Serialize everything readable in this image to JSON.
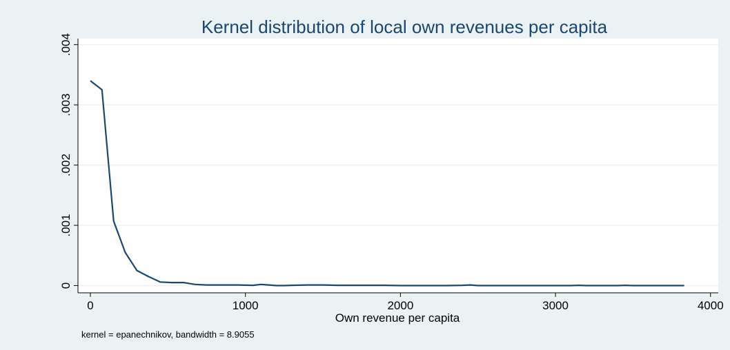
{
  "chart_data": {
    "type": "line",
    "title": "Kernel distribution of local own revenues per capita",
    "xlabel": "Own revenue per capita",
    "ylabel": "",
    "note": "kernel = epanechnikov, bandwidth = 8.9055",
    "xlim": [
      -80,
      4050
    ],
    "ylim": [
      -0.00012,
      0.0041
    ],
    "xticks": [
      0,
      1000,
      2000,
      3000,
      4000
    ],
    "xtick_labels": [
      "0",
      "1000",
      "2000",
      "3000",
      "4000"
    ],
    "yticks": [
      0,
      0.001,
      0.002,
      0.003,
      0.004
    ],
    "ytick_labels": [
      "0",
      ".001",
      ".002",
      ".003",
      ".004"
    ],
    "grid": true,
    "colors": {
      "line": "#1a476f",
      "plot_bg": "#ffffff",
      "outer_bg": "#eaf2f3",
      "grid": "#eaf2f3",
      "title": "#1a476f"
    },
    "series": [
      {
        "x": [
          0,
          75,
          150,
          225,
          300,
          375,
          450,
          525,
          600,
          675,
          750,
          850,
          950,
          1050,
          1100,
          1150,
          1200,
          1250,
          1300,
          1400,
          1500,
          1600,
          1700,
          1800,
          1900,
          2000,
          2100,
          2200,
          2300,
          2400,
          2450,
          2500,
          2600,
          2700,
          2800,
          2900,
          3000,
          3100,
          3150,
          3200,
          3300,
          3400,
          3450,
          3500,
          3600,
          3700,
          3750,
          3830
        ],
        "y": [
          0.0034,
          0.00325,
          0.00107,
          0.00055,
          0.00025,
          0.00015,
          6e-05,
          5e-05,
          5e-05,
          2e-05,
          1e-05,
          1e-05,
          1e-05,
          5e-06,
          2e-05,
          1e-05,
          0.0,
          0.0,
          5e-06,
          1e-05,
          1e-05,
          5e-06,
          5e-06,
          5e-06,
          5e-06,
          0.0,
          0.0,
          0.0,
          0.0,
          5e-06,
          1e-05,
          0.0,
          0.0,
          0.0,
          0.0,
          0.0,
          0.0,
          0.0,
          5e-06,
          0.0,
          0.0,
          0.0,
          5e-06,
          0.0,
          0.0,
          0.0,
          0.0,
          0.0
        ]
      }
    ]
  }
}
